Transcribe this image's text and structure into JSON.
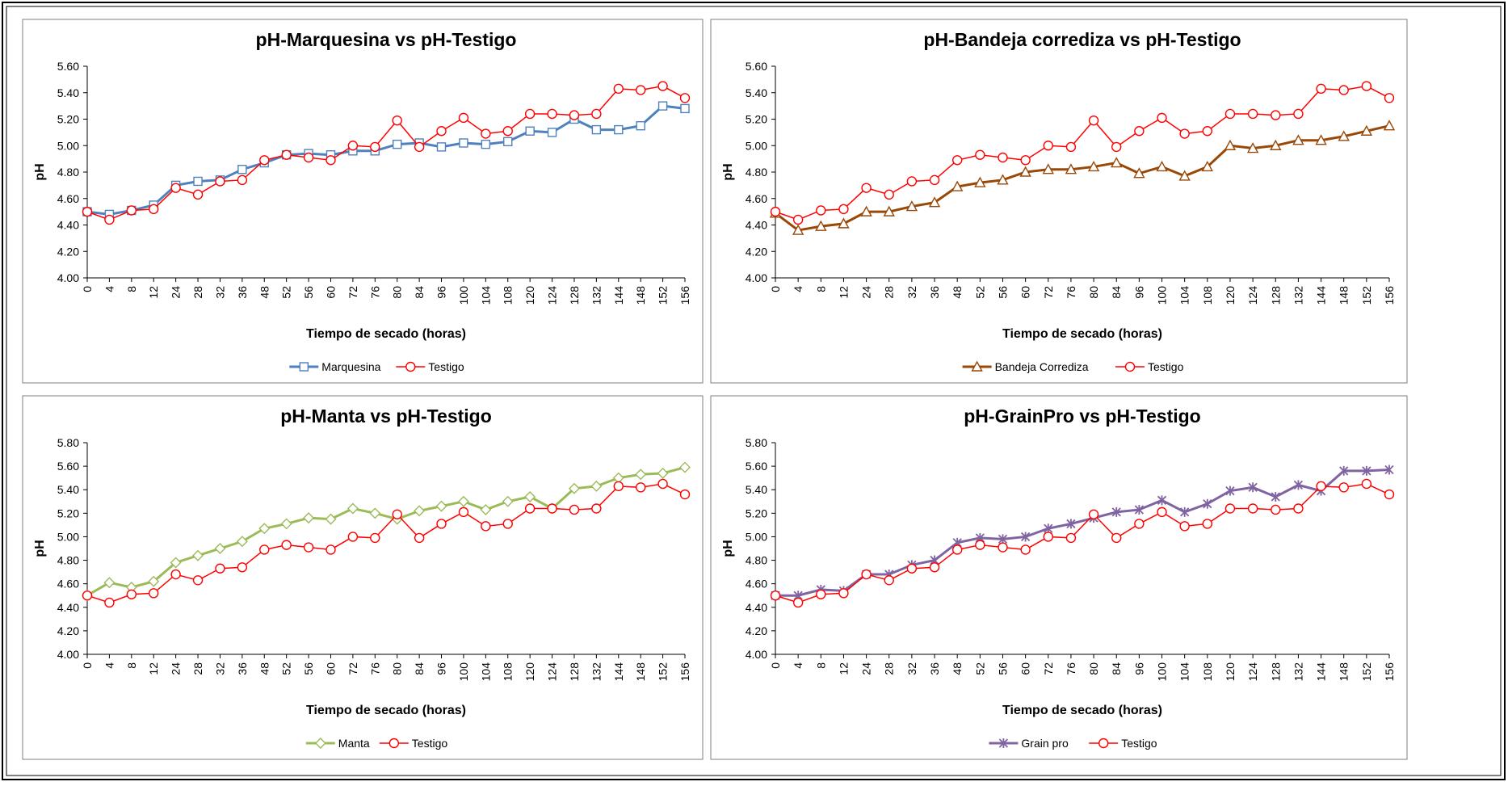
{
  "chart_data": [
    {
      "type": "line",
      "title": "pH-Marquesina  vs pH-Testigo",
      "x_label": "Tiempo de secado (horas)",
      "y_label": "pH",
      "categories": [
        "0",
        "4",
        "8",
        "12",
        "24",
        "28",
        "32",
        "36",
        "48",
        "52",
        "56",
        "60",
        "72",
        "76",
        "80",
        "84",
        "96",
        "100",
        "104",
        "108",
        "120",
        "124",
        "128",
        "132",
        "144",
        "148",
        "152",
        "156"
      ],
      "ylim": [
        4.0,
        5.6
      ],
      "yticks": [
        {
          "value": 4.0,
          "label": "4.00"
        },
        {
          "value": 4.2,
          "label": "4.20"
        },
        {
          "value": 4.4,
          "label": "4.40"
        },
        {
          "value": 4.6,
          "label": "4.60"
        },
        {
          "value": 4.8,
          "label": "4.80"
        },
        {
          "value": 5.0,
          "label": "5.00"
        },
        {
          "value": 5.2,
          "label": "5.20"
        },
        {
          "value": 5.4,
          "label": "5.40"
        },
        {
          "value": 5.6,
          "label": "5.60"
        }
      ],
      "series": [
        {
          "name": "Marquesina",
          "color": "#4f81bd",
          "marker": "square",
          "line_width": 3,
          "values": [
            4.5,
            4.48,
            4.51,
            4.55,
            4.7,
            4.73,
            4.74,
            4.82,
            4.87,
            4.93,
            4.94,
            4.93,
            4.96,
            4.96,
            5.01,
            5.02,
            4.99,
            5.02,
            5.01,
            5.03,
            5.11,
            5.1,
            5.2,
            5.12,
            5.12,
            5.15,
            5.3,
            5.28
          ]
        },
        {
          "name": "Testigo",
          "color": "#ff0000",
          "marker": "circle",
          "line_width": 1.5,
          "values": [
            4.5,
            4.44,
            4.51,
            4.52,
            4.68,
            4.63,
            4.73,
            4.74,
            4.89,
            4.93,
            4.91,
            4.89,
            5.0,
            4.99,
            5.19,
            4.99,
            5.11,
            5.21,
            5.09,
            5.11,
            5.24,
            5.24,
            5.23,
            5.24,
            5.43,
            5.42,
            5.45,
            5.36
          ]
        }
      ]
    },
    {
      "type": "line",
      "title": "pH-Bandeja  corrediza  vs pH-Testigo",
      "x_label": "Tiempo de secado (horas)",
      "y_label": "pH",
      "categories": [
        "0",
        "4",
        "8",
        "12",
        "24",
        "28",
        "32",
        "36",
        "48",
        "52",
        "56",
        "60",
        "72",
        "76",
        "80",
        "84",
        "96",
        "100",
        "104",
        "108",
        "120",
        "124",
        "128",
        "132",
        "144",
        "148",
        "152",
        "156"
      ],
      "ylim": [
        4.0,
        5.6
      ],
      "yticks": [
        {
          "value": 4.0,
          "label": "4.00"
        },
        {
          "value": 4.2,
          "label": "4.20"
        },
        {
          "value": 4.4,
          "label": "4.40"
        },
        {
          "value": 4.6,
          "label": "4.60"
        },
        {
          "value": 4.8,
          "label": "4.80"
        },
        {
          "value": 5.0,
          "label": "5.00"
        },
        {
          "value": 5.2,
          "label": "5.20"
        },
        {
          "value": 5.4,
          "label": "5.40"
        },
        {
          "value": 5.6,
          "label": "5.60"
        }
      ],
      "series": [
        {
          "name": "Bandeja Corrediza",
          "color": "#984807",
          "marker": "triangle",
          "line_width": 3,
          "values": [
            4.49,
            4.36,
            4.39,
            4.41,
            4.5,
            4.5,
            4.54,
            4.57,
            4.69,
            4.72,
            4.74,
            4.8,
            4.82,
            4.82,
            4.84,
            4.87,
            4.79,
            4.84,
            4.77,
            4.84,
            5.0,
            4.98,
            5.0,
            5.04,
            5.04,
            5.07,
            5.11,
            5.15
          ]
        },
        {
          "name": "Testigo",
          "color": "#ff0000",
          "marker": "circle",
          "line_width": 1.5,
          "values": [
            4.5,
            4.44,
            4.51,
            4.52,
            4.68,
            4.63,
            4.73,
            4.74,
            4.89,
            4.93,
            4.91,
            4.89,
            5.0,
            4.99,
            5.19,
            4.99,
            5.11,
            5.21,
            5.09,
            5.11,
            5.24,
            5.24,
            5.23,
            5.24,
            5.43,
            5.42,
            5.45,
            5.36
          ]
        }
      ]
    },
    {
      "type": "line",
      "title": "pH-Manta  vs pH-Testigo",
      "x_label": "Tiempo de secado (horas)",
      "y_label": "pH",
      "categories": [
        "0",
        "4",
        "8",
        "12",
        "24",
        "28",
        "32",
        "36",
        "48",
        "52",
        "56",
        "60",
        "72",
        "76",
        "80",
        "84",
        "96",
        "100",
        "104",
        "108",
        "120",
        "124",
        "128",
        "132",
        "144",
        "148",
        "152",
        "156"
      ],
      "ylim": [
        4.0,
        5.8
      ],
      "yticks": [
        {
          "value": 4.0,
          "label": "4.00"
        },
        {
          "value": 4.2,
          "label": "4.20"
        },
        {
          "value": 4.4,
          "label": "4.40"
        },
        {
          "value": 4.6,
          "label": "4.60"
        },
        {
          "value": 4.8,
          "label": "4.80"
        },
        {
          "value": 5.0,
          "label": "5.00"
        },
        {
          "value": 5.2,
          "label": "5.20"
        },
        {
          "value": 5.4,
          "label": "5.40"
        },
        {
          "value": 5.6,
          "label": "5.60"
        },
        {
          "value": 5.8,
          "label": "5.80"
        }
      ],
      "series": [
        {
          "name": "Manta",
          "color": "#9bbb59",
          "marker": "diamond",
          "line_width": 3,
          "values": [
            4.5,
            4.61,
            4.57,
            4.62,
            4.78,
            4.84,
            4.9,
            4.96,
            5.07,
            5.11,
            5.16,
            5.15,
            5.24,
            5.2,
            5.15,
            5.22,
            5.26,
            5.3,
            5.23,
            5.3,
            5.34,
            5.24,
            5.41,
            5.43,
            5.5,
            5.53,
            5.54,
            5.59
          ]
        },
        {
          "name": "Testigo",
          "color": "#ff0000",
          "marker": "circle",
          "line_width": 1.5,
          "values": [
            4.5,
            4.44,
            4.51,
            4.52,
            4.68,
            4.63,
            4.73,
            4.74,
            4.89,
            4.93,
            4.91,
            4.89,
            5.0,
            4.99,
            5.19,
            4.99,
            5.11,
            5.21,
            5.09,
            5.11,
            5.24,
            5.24,
            5.23,
            5.24,
            5.43,
            5.42,
            5.45,
            5.36
          ]
        }
      ]
    },
    {
      "type": "line",
      "title": "pH-GrainPro  vs pH-Testigo",
      "x_label": "Tiempo de secado (horas)",
      "y_label": "pH",
      "categories": [
        "0",
        "4",
        "8",
        "12",
        "24",
        "28",
        "32",
        "36",
        "48",
        "52",
        "56",
        "60",
        "72",
        "76",
        "80",
        "84",
        "96",
        "100",
        "104",
        "108",
        "120",
        "124",
        "128",
        "132",
        "144",
        "148",
        "152",
        "156"
      ],
      "ylim": [
        4.0,
        5.8
      ],
      "yticks": [
        {
          "value": 4.0,
          "label": "4.00"
        },
        {
          "value": 4.2,
          "label": "4.20"
        },
        {
          "value": 4.4,
          "label": "4.40"
        },
        {
          "value": 4.6,
          "label": "4.60"
        },
        {
          "value": 4.8,
          "label": "4.80"
        },
        {
          "value": 5.0,
          "label": "5.00"
        },
        {
          "value": 5.2,
          "label": "5.20"
        },
        {
          "value": 5.4,
          "label": "5.40"
        },
        {
          "value": 5.6,
          "label": "5.60"
        },
        {
          "value": 5.8,
          "label": "5.80"
        }
      ],
      "series": [
        {
          "name": "Grain pro",
          "color": "#8064a2",
          "marker": "star",
          "line_width": 3,
          "values": [
            4.5,
            4.5,
            4.55,
            4.54,
            4.68,
            4.68,
            4.76,
            4.8,
            4.95,
            4.99,
            4.98,
            5.0,
            5.07,
            5.11,
            5.16,
            5.21,
            5.23,
            5.31,
            5.21,
            5.28,
            5.39,
            5.42,
            5.34,
            5.44,
            5.39,
            5.56,
            5.56,
            5.57
          ]
        },
        {
          "name": "Testigo",
          "color": "#ff0000",
          "marker": "circle",
          "line_width": 1.5,
          "values": [
            4.5,
            4.44,
            4.51,
            4.52,
            4.68,
            4.63,
            4.73,
            4.74,
            4.89,
            4.93,
            4.91,
            4.89,
            5.0,
            4.99,
            5.19,
            4.99,
            5.11,
            5.21,
            5.09,
            5.11,
            5.24,
            5.24,
            5.23,
            5.24,
            5.43,
            5.42,
            5.45,
            5.36
          ]
        }
      ]
    }
  ]
}
